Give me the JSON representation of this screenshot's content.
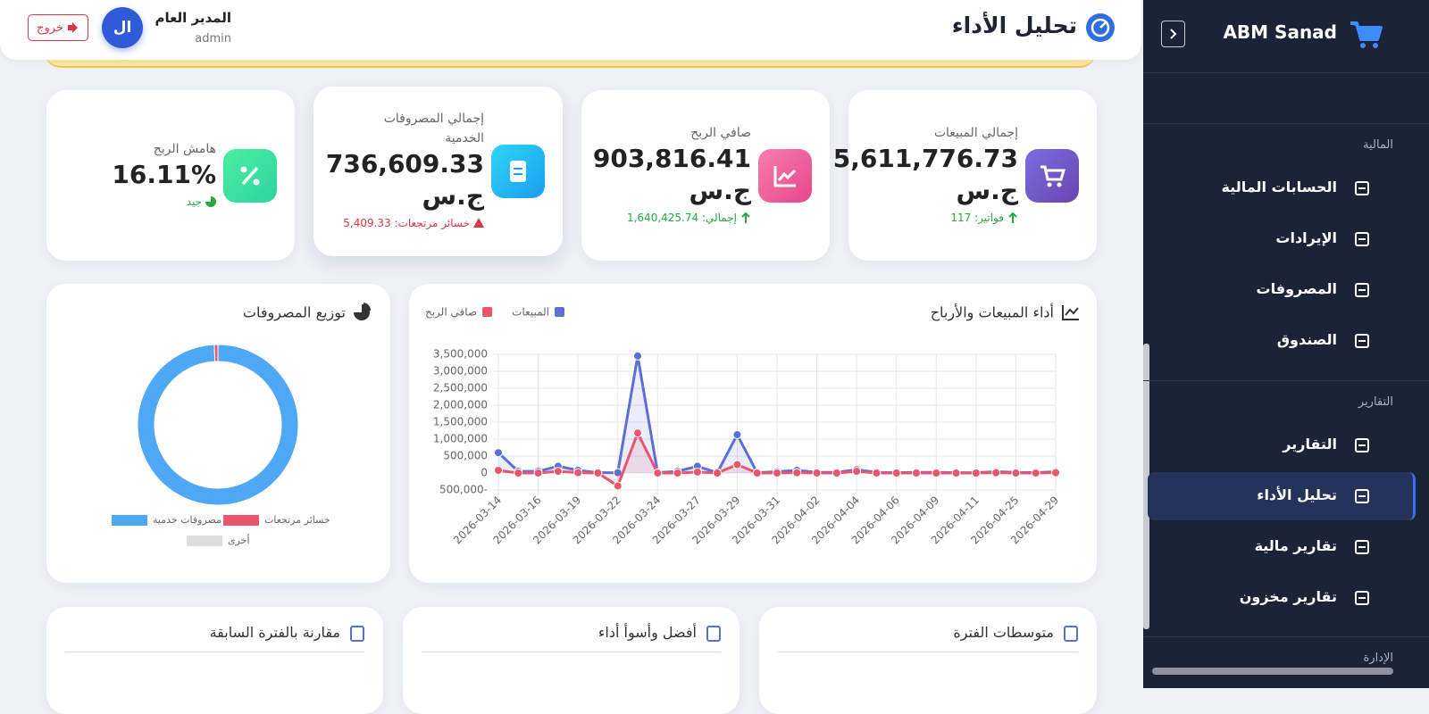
{
  "header": {
    "title": "تحليل الأداء",
    "user_name": "المدير العام",
    "user_role": "admin",
    "avatar": "ال",
    "logout": "خروج"
  },
  "sidebar": {
    "brand": "ABM Sanad",
    "sections": [
      {
        "title": "المالية",
        "items": [
          {
            "label": "الحسابات المالية"
          },
          {
            "label": "الإيرادات"
          },
          {
            "label": "المصروفات"
          },
          {
            "label": "الصندوق"
          }
        ]
      },
      {
        "title": "التقارير",
        "items": [
          {
            "label": "التقارير"
          },
          {
            "label": "تحليل الأداء",
            "active": true
          },
          {
            "label": "تقارير مالية"
          },
          {
            "label": "تقارير مخزون"
          }
        ]
      },
      {
        "title": "الإدارة",
        "items": []
      }
    ]
  },
  "stats": [
    {
      "label": "إجمالي المبيعات",
      "value": "5,611,776.73",
      "unit": "ج.س",
      "note": "فواتير: 117",
      "tone": "good"
    },
    {
      "label": "صافي الربح",
      "value": "903,816.41",
      "unit": "ج.س",
      "note": "إجمالي: 1,640,425.74",
      "tone": "good"
    },
    {
      "label": "إجمالي المصروفات الخدمية",
      "value": "736,609.33",
      "unit": "ج.س",
      "note": "خسائر مرتجعات: 5,409.33",
      "tone": "bad"
    },
    {
      "label": "هامش الربح",
      "value": "16.11%",
      "note": "جيد",
      "tone": "good"
    }
  ],
  "chart_data": [
    {
      "type": "line",
      "title": "أداء المبيعات والأرباح",
      "categories": [
        "2026-03-14",
        null,
        "2026-03-16",
        null,
        "2026-03-19",
        null,
        "2026-03-22",
        null,
        "2026-03-24",
        null,
        "2026-03-27",
        null,
        "2026-03-29",
        null,
        "2026-03-31",
        null,
        "2026-04-02",
        null,
        "2026-04-04",
        null,
        "2026-04-06",
        null,
        "2026-04-09",
        null,
        "2026-04-11",
        null,
        "2026-04-25",
        null,
        "2026-04-29"
      ],
      "series": [
        {
          "name": "المبيعات",
          "color": "#5b6fd6",
          "values": [
            600000,
            50000,
            50000,
            200000,
            80000,
            10000,
            10000,
            3450000,
            10000,
            50000,
            200000,
            10000,
            1130000,
            10000,
            40000,
            80000,
            20000,
            20000,
            100000,
            20000,
            10000,
            20000,
            20000,
            10000,
            10000,
            40000,
            20000,
            10000,
            40000
          ]
        },
        {
          "name": "صافي الربح",
          "color": "#e8556d",
          "values": [
            80000,
            0,
            0,
            50000,
            10000,
            0,
            -380000,
            1180000,
            0,
            0,
            30000,
            0,
            250000,
            0,
            0,
            10000,
            0,
            0,
            50000,
            0,
            0,
            0,
            0,
            0,
            0,
            10000,
            0,
            0,
            10000
          ]
        }
      ],
      "ylim": [
        -500000,
        3500000
      ],
      "yticks": [
        {
          "value": -500000,
          "label": "-500,000"
        },
        0,
        {
          "value": 500000,
          "label": "500,000"
        },
        {
          "value": 1000000,
          "label": "1,000,000"
        },
        {
          "value": 1500000,
          "label": "1,500,000"
        },
        {
          "value": 2000000,
          "label": "2,000,000"
        },
        {
          "value": 2500000,
          "label": "2,500,000"
        },
        {
          "value": 3000000,
          "label": "3,000,000"
        },
        {
          "value": 3500000,
          "label": "3,500,000"
        }
      ],
      "grid": true,
      "legend": "top-left"
    },
    {
      "type": "doughnut",
      "title": "توزيع المصروفات",
      "categories": [
        "مصروفات خدمية",
        "خسائر مرتجعات",
        "أخرى"
      ],
      "values": [
        736609.33,
        5409.33,
        0
      ],
      "colors": [
        "#4ea8f5",
        "#e8556d",
        "#dddddd"
      ],
      "legend": "bottom"
    }
  ],
  "bottom_cards": [
    "متوسطات الفترة",
    "أفضل وأسوأ أداء",
    "مقارنة بالفترة السابقة"
  ]
}
